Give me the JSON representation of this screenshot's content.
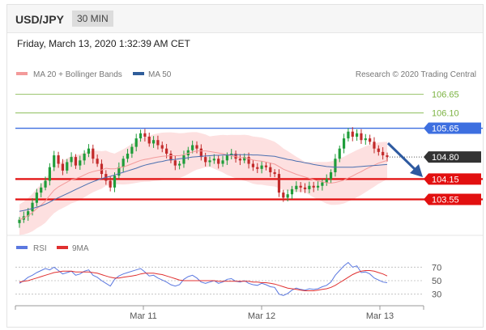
{
  "header": {
    "pair": "USD/JPY",
    "timeframe": "30 MIN"
  },
  "date_text": "Friday, March 13, 2020 1:32:39 AM CET",
  "legend": {
    "ma20": "MA 20 + Bollinger Bands",
    "ma50": "MA 50",
    "credit": "Research © 2020 Trading Central",
    "rsi": "RSI",
    "rsi_ma": "9MA"
  },
  "colors": {
    "resistance_green": "#7cb342",
    "pivot_blue": "#3d6fe0",
    "support_red": "#e21010",
    "bollinger_fill": "#fcd6d6",
    "ma20": "#f39a9a",
    "ma50": "#4a6fb0",
    "rsi": "#5b78e0",
    "rsi_ma": "#e03030",
    "price_tag": "#333333",
    "arrow": "#2e5aa0"
  },
  "chart_data": [
    {
      "type": "line",
      "subtype": "candlestick",
      "title": "",
      "xlabel": "",
      "ylabel": "",
      "x_ticks": [
        "Mar 11",
        "Mar 12",
        "Mar 13"
      ],
      "ylim": [
        102.75,
        107.0
      ],
      "levels": [
        {
          "value": 106.65,
          "label": "106.65",
          "kind": "resistance",
          "color": "#7cb342"
        },
        {
          "value": 106.1,
          "label": "106.10",
          "kind": "resistance",
          "color": "#7cb342"
        },
        {
          "value": 105.65,
          "label": "105.65",
          "kind": "pivot",
          "color": "#3d6fe0"
        },
        {
          "value": 104.8,
          "label": "104.80",
          "kind": "last",
          "color": "#333333"
        },
        {
          "value": 104.15,
          "label": "104.15",
          "kind": "support",
          "color": "#e21010"
        },
        {
          "value": 103.55,
          "label": "103.55",
          "kind": "support",
          "color": "#e21010"
        }
      ],
      "close": [
        102.95,
        103.05,
        103.2,
        103.45,
        103.75,
        103.9,
        104.1,
        104.5,
        104.85,
        104.6,
        104.4,
        104.65,
        104.8,
        104.55,
        104.7,
        104.9,
        105.05,
        104.75,
        104.6,
        104.3,
        104.1,
        103.9,
        104.25,
        104.5,
        104.75,
        104.9,
        105.1,
        105.35,
        105.5,
        105.4,
        105.2,
        105.3,
        105.15,
        105.05,
        104.9,
        104.7,
        104.55,
        104.6,
        104.85,
        105.0,
        105.15,
        105.05,
        104.8,
        104.65,
        104.7,
        104.75,
        104.6,
        104.7,
        104.85,
        104.9,
        104.75,
        104.7,
        104.8,
        104.6,
        104.5,
        104.45,
        104.55,
        104.5,
        104.35,
        104.3,
        103.75,
        103.6,
        103.7,
        103.85,
        103.95,
        103.9,
        103.85,
        103.95,
        103.9,
        103.95,
        104.05,
        104.15,
        104.35,
        104.75,
        105.05,
        105.35,
        105.55,
        105.4,
        105.5,
        105.3,
        105.35,
        105.25,
        105.05,
        104.95,
        104.85,
        104.8
      ],
      "series": [
        {
          "name": "MA 20",
          "values": [
            102.95,
            103.0,
            103.07,
            103.16,
            103.28,
            103.38,
            103.5,
            103.67,
            103.82,
            103.92,
            103.99,
            104.06,
            104.13,
            104.16,
            104.21,
            104.27,
            104.33,
            104.37,
            104.4,
            104.42,
            104.47,
            104.45,
            104.45,
            104.48,
            104.51,
            104.55,
            104.6,
            104.65,
            104.7,
            104.73,
            104.75,
            104.78,
            104.8,
            104.82,
            104.83,
            104.84,
            104.84,
            104.84,
            104.87,
            104.91,
            104.95,
            104.98,
            104.98,
            104.98,
            104.96,
            104.94,
            104.92,
            104.9,
            104.86,
            104.84,
            104.81,
            104.79,
            104.78,
            104.75,
            104.71,
            104.69,
            104.68,
            104.65,
            104.62,
            104.59,
            104.52,
            104.44,
            104.39,
            104.34,
            104.29,
            104.25,
            104.21,
            104.17,
            104.13,
            104.1,
            104.07,
            104.04,
            104.03,
            104.05,
            104.08,
            104.12,
            104.18,
            104.24,
            104.31,
            104.37,
            104.44,
            104.5,
            104.56,
            104.62,
            104.66,
            104.7
          ]
        },
        {
          "name": "MA 50",
          "values": [
            103.2,
            103.22,
            103.25,
            103.28,
            103.32,
            103.36,
            103.41,
            103.47,
            103.54,
            103.6,
            103.66,
            103.72,
            103.78,
            103.84,
            103.9,
            103.96,
            104.02,
            104.07,
            104.12,
            104.16,
            104.2,
            104.23,
            104.27,
            104.31,
            104.35,
            104.39,
            104.43,
            104.47,
            104.52,
            104.56,
            104.59,
            104.62,
            104.65,
            104.67,
            104.7,
            104.72,
            104.73,
            104.75,
            104.76,
            104.78,
            104.8,
            104.81,
            104.82,
            104.83,
            104.84,
            104.85,
            104.85,
            104.86,
            104.86,
            104.87,
            104.87,
            104.87,
            104.87,
            104.87,
            104.86,
            104.86,
            104.85,
            104.84,
            104.83,
            104.82,
            104.79,
            104.76,
            104.73,
            104.71,
            104.68,
            104.66,
            104.63,
            104.61,
            104.58,
            104.56,
            104.54,
            104.52,
            104.51,
            104.5,
            104.5,
            104.5,
            104.5,
            104.5,
            104.51,
            104.52,
            104.53,
            104.54,
            104.55,
            104.56,
            104.57,
            104.58
          ]
        }
      ],
      "legend_position": "top-left"
    },
    {
      "type": "line",
      "title": "",
      "xlabel": "",
      "ylabel": "",
      "y_ticks": [
        "70",
        "50",
        "30"
      ],
      "ylim": [
        20,
        80
      ],
      "x_ticks": [
        "Mar 11",
        "Mar 12",
        "Mar 13"
      ],
      "series": [
        {
          "name": "RSI",
          "values": [
            46,
            50,
            55,
            58,
            62,
            65,
            68,
            66,
            70,
            65,
            60,
            62,
            64,
            58,
            60,
            64,
            66,
            58,
            55,
            50,
            46,
            42,
            52,
            57,
            60,
            62,
            64,
            66,
            68,
            63,
            57,
            58,
            54,
            51,
            48,
            44,
            42,
            44,
            52,
            56,
            58,
            54,
            48,
            46,
            48,
            50,
            46,
            48,
            52,
            53,
            49,
            48,
            50,
            46,
            44,
            43,
            46,
            44,
            41,
            40,
            30,
            28,
            31,
            36,
            39,
            37,
            36,
            38,
            37,
            38,
            41,
            43,
            48,
            58,
            65,
            72,
            77,
            70,
            72,
            62,
            63,
            60,
            54,
            51,
            48,
            47
          ]
        },
        {
          "name": "9MA",
          "values": [
            48,
            49,
            50,
            52,
            54,
            56,
            58,
            60,
            62,
            63,
            64,
            64,
            64,
            63,
            63,
            63,
            63,
            62,
            61,
            59,
            57,
            55,
            54,
            54,
            55,
            56,
            57,
            58,
            60,
            61,
            61,
            61,
            60,
            59,
            57,
            55,
            53,
            51,
            50,
            50,
            50,
            50,
            50,
            50,
            50,
            50,
            49,
            49,
            49,
            49,
            49,
            49,
            49,
            49,
            48,
            48,
            47,
            47,
            46,
            45,
            43,
            41,
            39,
            38,
            37,
            36,
            35,
            35,
            35,
            36,
            37,
            38,
            40,
            43,
            47,
            51,
            55,
            59,
            62,
            64,
            65,
            65,
            64,
            62,
            60,
            57
          ]
        }
      ],
      "legend_position": "top-left"
    }
  ]
}
